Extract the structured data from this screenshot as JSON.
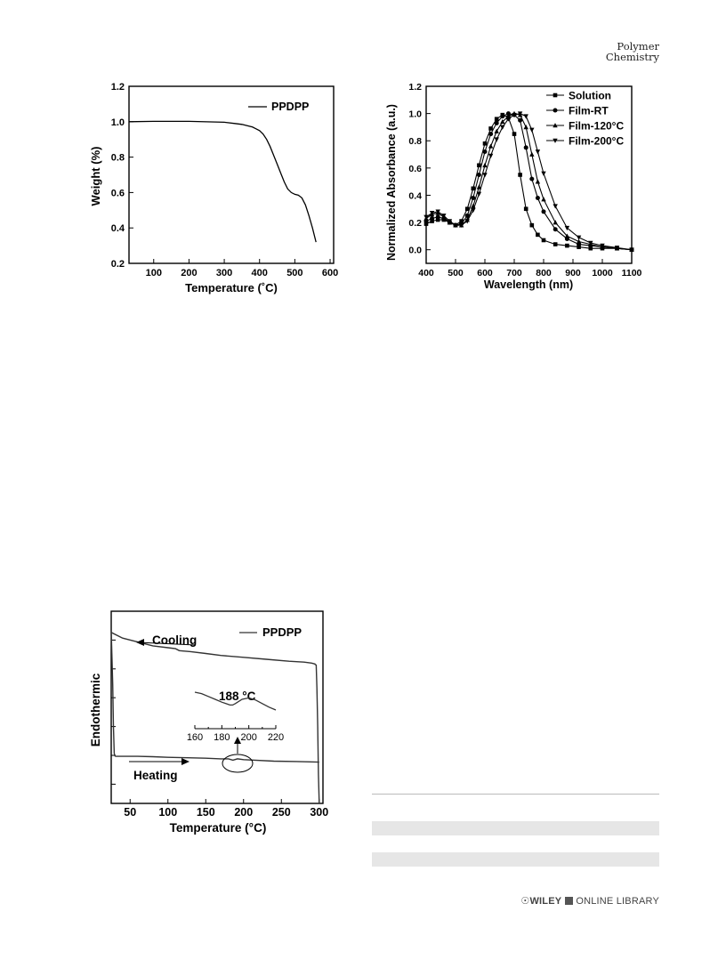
{
  "header": {
    "journal_line1": "Polymer",
    "journal_line2": "Chemistry"
  },
  "footer": {
    "logo_symbol": "☉",
    "brand": "WILEY",
    "library": "ONLINE LIBRARY"
  },
  "colors": {
    "line": "#000000",
    "dsc_line": "#333333",
    "table_band": "#e6e6e6"
  },
  "chart_data": [
    {
      "type": "line",
      "xlabel": "Temperature (˚C)",
      "ylabel": "Weight (%)",
      "xlim": [
        30,
        610
      ],
      "ylim": [
        0.2,
        1.2
      ],
      "x_ticks": [
        100,
        200,
        300,
        400,
        500,
        600
      ],
      "y_ticks": [
        0.2,
        0.4,
        0.6,
        0.8,
        1.0,
        1.2
      ],
      "x_tick_labels": [
        "100",
        "200",
        "300",
        "400",
        "500",
        "600"
      ],
      "y_tick_labels": [
        "0.2",
        "0.4",
        "0.6",
        "0.8",
        "1.0",
        "1.2"
      ],
      "legend_position": "top-right",
      "series": [
        {
          "name": "PPDPP",
          "x": [
            30,
            100,
            200,
            300,
            330,
            350,
            370,
            380,
            390,
            400,
            410,
            420,
            430,
            440,
            450,
            460,
            470,
            480,
            490,
            500,
            510,
            520,
            530,
            540,
            550,
            560
          ],
          "y": [
            1.0,
            1.002,
            1.002,
            0.997,
            0.99,
            0.985,
            0.975,
            0.97,
            0.96,
            0.95,
            0.93,
            0.9,
            0.86,
            0.81,
            0.76,
            0.71,
            0.66,
            0.62,
            0.6,
            0.59,
            0.585,
            0.57,
            0.53,
            0.47,
            0.4,
            0.32
          ]
        }
      ]
    },
    {
      "type": "line",
      "xlabel": "Wavelength (nm)",
      "ylabel": "Normalized Absorbance (a.u.)",
      "xlim": [
        400,
        1100
      ],
      "ylim": [
        -0.1,
        1.2
      ],
      "x_ticks": [
        400,
        500,
        600,
        700,
        800,
        900,
        1000,
        1100
      ],
      "y_ticks": [
        0.0,
        0.2,
        0.4,
        0.6,
        0.8,
        1.0,
        1.2
      ],
      "x_tick_labels": [
        "400",
        "500",
        "600",
        "700",
        "800",
        "900",
        "1000",
        "1100"
      ],
      "y_tick_labels": [
        "0.0",
        "0.2",
        "0.4",
        "0.6",
        "0.8",
        "1.0",
        "1.2"
      ],
      "legend_position": "top-right",
      "series": [
        {
          "name": "Solution",
          "marker": "square",
          "x": [
            400,
            420,
            440,
            460,
            480,
            500,
            520,
            540,
            560,
            580,
            600,
            620,
            640,
            660,
            680,
            700,
            720,
            740,
            760,
            780,
            800,
            840,
            880,
            920,
            960,
            1000,
            1050,
            1100
          ],
          "y": [
            0.19,
            0.21,
            0.22,
            0.22,
            0.2,
            0.18,
            0.21,
            0.3,
            0.45,
            0.62,
            0.78,
            0.89,
            0.96,
            0.99,
            0.97,
            0.85,
            0.55,
            0.3,
            0.18,
            0.11,
            0.07,
            0.04,
            0.03,
            0.02,
            0.01,
            0.01,
            0.01,
            0.0
          ]
        },
        {
          "name": "Film-RT",
          "marker": "circle",
          "x": [
            400,
            420,
            440,
            460,
            480,
            500,
            520,
            540,
            560,
            580,
            600,
            620,
            640,
            660,
            680,
            700,
            720,
            740,
            760,
            780,
            800,
            840,
            880,
            920,
            960,
            1000,
            1050,
            1100
          ],
          "y": [
            0.21,
            0.23,
            0.24,
            0.23,
            0.2,
            0.18,
            0.19,
            0.25,
            0.38,
            0.55,
            0.72,
            0.85,
            0.93,
            0.98,
            1.0,
            0.99,
            0.95,
            0.75,
            0.52,
            0.38,
            0.28,
            0.15,
            0.08,
            0.04,
            0.03,
            0.02,
            0.01,
            0.0
          ]
        },
        {
          "name": "Film-120°C",
          "marker": "triangle-up",
          "x": [
            400,
            420,
            440,
            460,
            480,
            500,
            520,
            540,
            560,
            580,
            600,
            620,
            640,
            660,
            680,
            700,
            720,
            740,
            760,
            780,
            800,
            840,
            880,
            920,
            960,
            1000,
            1050,
            1100
          ],
          "y": [
            0.23,
            0.26,
            0.27,
            0.24,
            0.2,
            0.18,
            0.18,
            0.22,
            0.32,
            0.46,
            0.62,
            0.76,
            0.87,
            0.94,
            0.98,
            1.0,
            0.99,
            0.9,
            0.7,
            0.5,
            0.37,
            0.2,
            0.1,
            0.06,
            0.04,
            0.02,
            0.01,
            0.0
          ]
        },
        {
          "name": "Film-200°C",
          "marker": "triangle-down",
          "x": [
            400,
            420,
            440,
            460,
            480,
            500,
            520,
            540,
            560,
            580,
            600,
            620,
            640,
            660,
            680,
            700,
            720,
            740,
            760,
            780,
            800,
            840,
            880,
            920,
            960,
            1000,
            1050,
            1100
          ],
          "y": [
            0.24,
            0.27,
            0.28,
            0.25,
            0.21,
            0.18,
            0.18,
            0.21,
            0.29,
            0.41,
            0.55,
            0.69,
            0.81,
            0.9,
            0.96,
            0.99,
            1.0,
            0.98,
            0.88,
            0.72,
            0.56,
            0.32,
            0.16,
            0.09,
            0.05,
            0.03,
            0.015,
            0.0
          ]
        }
      ]
    },
    {
      "type": "line",
      "xlabel": "Temperature (°C)",
      "ylabel": "Endothermic",
      "xlim": [
        25,
        305
      ],
      "ylim": [
        0,
        1
      ],
      "x_ticks": [
        50,
        100,
        150,
        200,
        250,
        300
      ],
      "x_tick_labels": [
        "50",
        "100",
        "150",
        "200",
        "250",
        "300"
      ],
      "y_ticks": [
        0.1,
        0.25,
        0.4,
        0.55,
        0.7,
        0.85
      ],
      "legend_position": "top-right",
      "annotations": {
        "cooling": "Cooling",
        "heating": "Heating",
        "peak": "188 °C",
        "inset_ticks": [
          "160",
          "180",
          "200",
          "220"
        ]
      },
      "series": [
        {
          "name": "PPDPP",
          "segments": {
            "cooling": {
              "x": [
                25,
                40,
                60,
                80,
                100,
                110,
                115,
                130,
                150,
                170,
                200,
                230,
                260,
                280,
                290,
                295
              ],
              "y": [
                0.89,
                0.86,
                0.84,
                0.82,
                0.81,
                0.805,
                0.795,
                0.79,
                0.78,
                0.77,
                0.76,
                0.75,
                0.74,
                0.735,
                0.73,
                0.725
              ]
            },
            "heating": {
              "x": [
                30,
                40,
                60,
                80,
                100,
                120,
                150,
                170,
                180,
                186,
                192,
                200,
                215,
                240,
                270,
                300
              ],
              "y": [
                0.245,
                0.245,
                0.245,
                0.243,
                0.24,
                0.238,
                0.235,
                0.232,
                0.232,
                0.225,
                0.232,
                0.228,
                0.225,
                0.22,
                0.218,
                0.215
              ]
            },
            "start_transient": {
              "x": [
                25,
                27,
                28,
                29,
                30
              ],
              "y": [
                0.9,
                0.62,
                0.4,
                0.26,
                0.245
              ]
            },
            "end_transient": {
              "x": [
                294,
                296,
                297,
                298,
                299,
                300
              ],
              "y": [
                0.725,
                0.72,
                0.6,
                0.4,
                0.15,
                0.0
              ]
            },
            "inset": {
              "x": [
                160,
                165,
                170,
                175,
                180,
                183,
                186,
                188,
                190,
                195,
                200,
                205,
                210,
                215,
                220
              ],
              "y": [
                0.7,
                0.66,
                0.58,
                0.5,
                0.42,
                0.38,
                0.34,
                0.34,
                0.38,
                0.5,
                0.54,
                0.48,
                0.38,
                0.28,
                0.2
              ]
            }
          }
        }
      ]
    }
  ]
}
